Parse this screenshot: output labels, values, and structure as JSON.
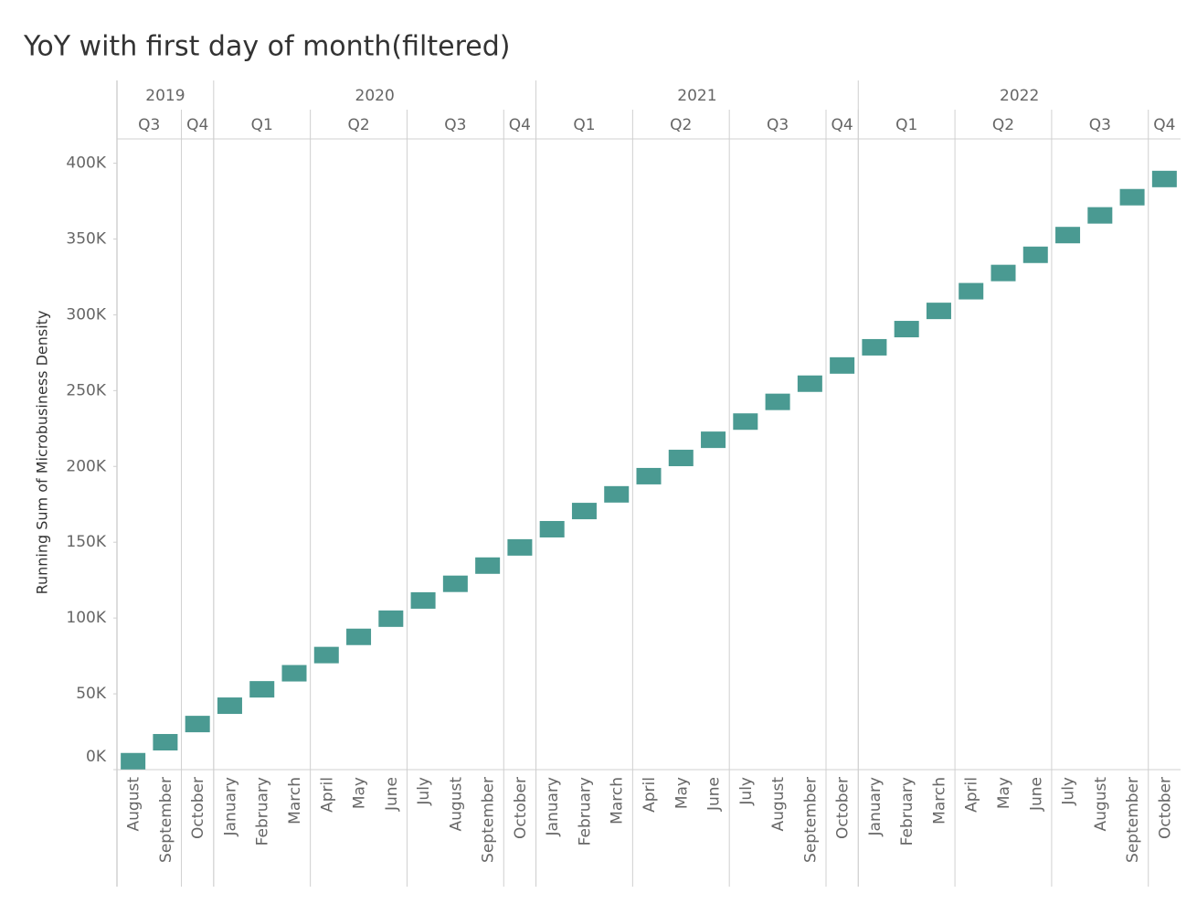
{
  "chart_data": {
    "type": "gantt",
    "title": "YoY with first day of month(filtered)",
    "y_label": "Running Sum of Microbusiness Density",
    "years": [
      {
        "label": "2019",
        "quarters": [
          {
            "label": "Q3",
            "months": [
              "August",
              "September"
            ]
          },
          {
            "label": "Q4",
            "months": [
              "October"
            ]
          }
        ]
      },
      {
        "label": "2020",
        "quarters": [
          {
            "label": "Q1",
            "months": [
              "January",
              "February",
              "March"
            ]
          },
          {
            "label": "Q2",
            "months": [
              "April",
              "May",
              "June"
            ]
          },
          {
            "label": "Q3",
            "months": [
              "July",
              "August",
              "September"
            ]
          },
          {
            "label": "Q4",
            "months": [
              "October"
            ]
          }
        ]
      },
      {
        "label": "2021",
        "quarters": [
          {
            "label": "Q1",
            "months": [
              "January",
              "February",
              "March"
            ]
          },
          {
            "label": "Q2",
            "months": [
              "April",
              "May",
              "June"
            ]
          },
          {
            "label": "Q3",
            "months": [
              "July",
              "August",
              "September"
            ]
          },
          {
            "label": "Q4",
            "months": [
              "October"
            ]
          }
        ]
      },
      {
        "label": "2022",
        "quarters": [
          {
            "label": "Q1",
            "months": [
              "January",
              "February",
              "March"
            ]
          },
          {
            "label": "Q2",
            "months": [
              "April",
              "May",
              "June"
            ]
          },
          {
            "label": "Q3",
            "months": [
              "July",
              "August",
              "September"
            ]
          },
          {
            "label": "Q4",
            "months": [
              "October"
            ]
          }
        ]
      }
    ],
    "values": [
      11000,
      23500,
      35500,
      47600,
      58400,
      69000,
      81000,
      93000,
      105000,
      117000,
      128000,
      140000,
      152000,
      164000,
      176000,
      187000,
      199000,
      211000,
      223000,
      235000,
      248000,
      260000,
      272000,
      284000,
      296000,
      308000,
      321000,
      333000,
      345000,
      358000,
      371000,
      383000,
      395000
    ],
    "color": "#4a9a92",
    "ylim": [
      0,
      416000
    ],
    "yticks": [
      {
        "value": 0,
        "label": "0K"
      },
      {
        "value": 50000,
        "label": "50K"
      },
      {
        "value": 100000,
        "label": "100K"
      },
      {
        "value": 150000,
        "label": "150K"
      },
      {
        "value": 200000,
        "label": "200K"
      },
      {
        "value": 250000,
        "label": "250K"
      },
      {
        "value": 300000,
        "label": "300K"
      },
      {
        "value": 350000,
        "label": "350K"
      },
      {
        "value": 400000,
        "label": "400K"
      }
    ]
  }
}
